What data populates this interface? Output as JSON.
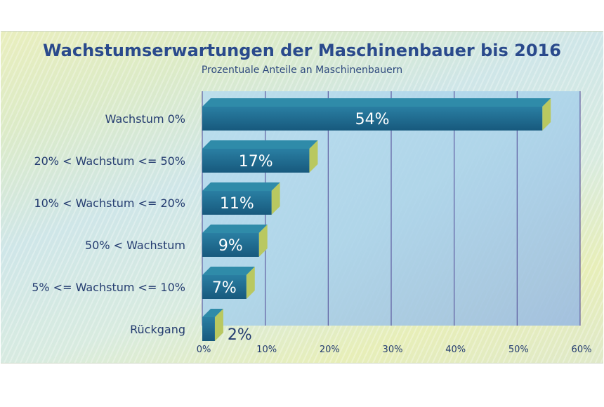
{
  "chart_data": {
    "type": "bar",
    "orientation": "horizontal",
    "title": "Wachstumserwartungen der Maschinenbauer bis 2016",
    "subtitle": "Prozentuale Anteile an Maschinenbauern",
    "categories": [
      "Wachstum 0%",
      "20% < Wachstum <= 50%",
      "10% < Wachstum <= 20%",
      "50% < Wachstum",
      "5% <= Wachstum <= 10%",
      "Rückgang"
    ],
    "values": [
      54,
      17,
      11,
      9,
      7,
      2
    ],
    "value_labels": [
      "54%",
      "17%",
      "11%",
      "9%",
      "7%",
      "2%"
    ],
    "xlim": [
      0,
      60
    ],
    "ticks": [
      0,
      10,
      20,
      30,
      40,
      50,
      60
    ],
    "tick_labels": [
      "0%",
      "10%",
      "20%",
      "30%",
      "40%",
      "50%",
      "60%"
    ],
    "grid": true,
    "legend": "none",
    "colors": {
      "bar_front": "#1f6f94",
      "bar_top": "#2f8ba9",
      "bar_side": "#b9c860",
      "title": "#2a4a8c",
      "grid": "#4a3f8f"
    }
  }
}
